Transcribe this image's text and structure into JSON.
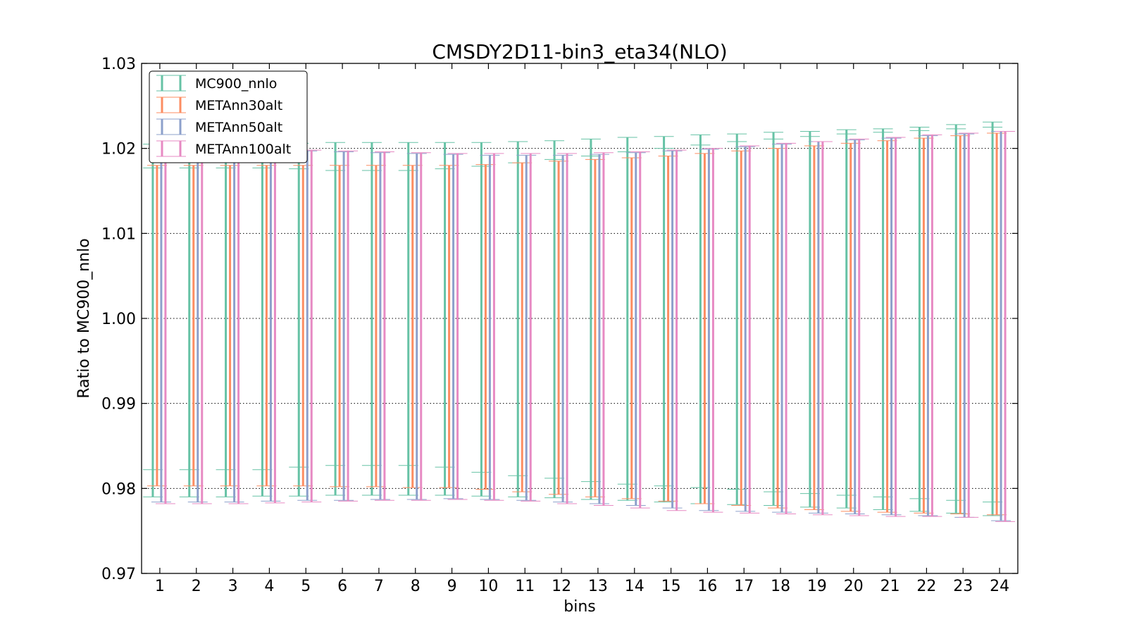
{
  "chart_data": {
    "type": "errorbar",
    "title": "CMSDY2D11-bin3_eta34(NLO)",
    "xlabel": "bins",
    "ylabel": "Ratio to MC900_nnlo",
    "ylim": [
      0.97,
      1.03
    ],
    "yticks": [
      "0.97",
      "0.98",
      "0.99",
      "1.00",
      "1.01",
      "1.02",
      "1.03"
    ],
    "grid": "horizontal dotted",
    "legend_position": "top-left",
    "categories": [
      "1",
      "2",
      "3",
      "4",
      "5",
      "6",
      "7",
      "8",
      "9",
      "10",
      "11",
      "12",
      "13",
      "14",
      "15",
      "16",
      "17",
      "18",
      "19",
      "20",
      "21",
      "22",
      "23",
      "24"
    ],
    "series": [
      {
        "name": "MC900_nnlo",
        "color": "#66c2a5",
        "low": [
          0.979,
          0.979,
          0.979,
          0.9791,
          0.9791,
          0.9792,
          0.9792,
          0.9792,
          0.9792,
          0.9791,
          0.979,
          0.9789,
          0.9787,
          0.9786,
          0.9784,
          0.9782,
          0.9781,
          0.978,
          0.9778,
          0.9777,
          0.9775,
          0.9773,
          0.9771,
          0.9768
        ],
        "high": [
          1.0205,
          1.0205,
          1.0205,
          1.0205,
          1.0206,
          1.0207,
          1.0207,
          1.0207,
          1.0207,
          1.0207,
          1.0208,
          1.0209,
          1.0211,
          1.0213,
          1.0214,
          1.0216,
          1.0217,
          1.0219,
          1.022,
          1.0222,
          1.0223,
          1.0225,
          1.0228,
          1.0231
        ],
        "inner_low": [
          0.9822,
          0.9822,
          0.9822,
          0.9822,
          0.9825,
          0.9827,
          0.9827,
          0.9827,
          0.9825,
          0.9819,
          0.9815,
          0.9812,
          0.9808,
          0.9805,
          0.9803,
          0.9801,
          0.9799,
          0.9796,
          0.9794,
          0.9792,
          0.979,
          0.9788,
          0.9786,
          0.9784
        ],
        "inner_high": [
          1.0177,
          1.0177,
          1.0177,
          1.0177,
          1.0176,
          1.0174,
          1.0174,
          1.0174,
          1.0176,
          1.0179,
          1.0183,
          1.0187,
          1.0191,
          1.0196,
          1.02,
          1.0204,
          1.0208,
          1.0211,
          1.0214,
          1.0217,
          1.0219,
          1.0221,
          1.0223,
          1.0225
        ]
      },
      {
        "name": "METAnn30alt",
        "color": "#fc8d62",
        "low": [
          0.9803,
          0.9803,
          0.9803,
          0.9803,
          0.9803,
          0.9802,
          0.9802,
          0.9801,
          0.9801,
          0.9799,
          0.9796,
          0.9793,
          0.979,
          0.9788,
          0.9785,
          0.9782,
          0.978,
          0.9777,
          0.9775,
          0.9773,
          0.9772,
          0.9771,
          0.977,
          0.9769
        ],
        "high": [
          1.018,
          1.018,
          1.018,
          1.018,
          1.018,
          1.018,
          1.018,
          1.018,
          1.018,
          1.0181,
          1.0183,
          1.0185,
          1.0187,
          1.0189,
          1.0191,
          1.0194,
          1.0197,
          1.02,
          1.0203,
          1.0206,
          1.0209,
          1.0212,
          1.0215,
          1.0218
        ]
      },
      {
        "name": "METAnn50alt",
        "color": "#8da0cb",
        "low": [
          0.9784,
          0.9784,
          0.9784,
          0.9785,
          0.9786,
          0.9786,
          0.9787,
          0.9787,
          0.9788,
          0.9787,
          0.9786,
          0.9784,
          0.9782,
          0.978,
          0.9777,
          0.9774,
          0.9773,
          0.9772,
          0.9771,
          0.977,
          0.9769,
          0.9768,
          0.9766,
          0.9762
        ],
        "high": [
          1.02,
          1.02,
          1.0199,
          1.0198,
          1.0197,
          1.0196,
          1.0195,
          1.0194,
          1.0193,
          1.0192,
          1.0192,
          1.0192,
          1.0193,
          1.0195,
          1.0197,
          1.0199,
          1.0202,
          1.0205,
          1.0208,
          1.021,
          1.0212,
          1.0215,
          1.0217,
          1.022
        ]
      },
      {
        "name": "METAnn100alt",
        "color": "#e78ac3",
        "low": [
          0.9782,
          0.9782,
          0.9782,
          0.9783,
          0.9784,
          0.9785,
          0.9786,
          0.9786,
          0.9787,
          0.9786,
          0.9785,
          0.9782,
          0.978,
          0.9777,
          0.9774,
          0.9772,
          0.9771,
          0.977,
          0.9769,
          0.9768,
          0.9767,
          0.9767,
          0.9766,
          0.9761
        ],
        "high": [
          1.02,
          1.02,
          1.0199,
          1.0198,
          1.0198,
          1.0197,
          1.0196,
          1.0195,
          1.0194,
          1.0194,
          1.0194,
          1.0194,
          1.0195,
          1.0196,
          1.0198,
          1.02,
          1.0203,
          1.0206,
          1.0208,
          1.0211,
          1.0213,
          1.0216,
          1.0218,
          1.022
        ]
      }
    ]
  }
}
